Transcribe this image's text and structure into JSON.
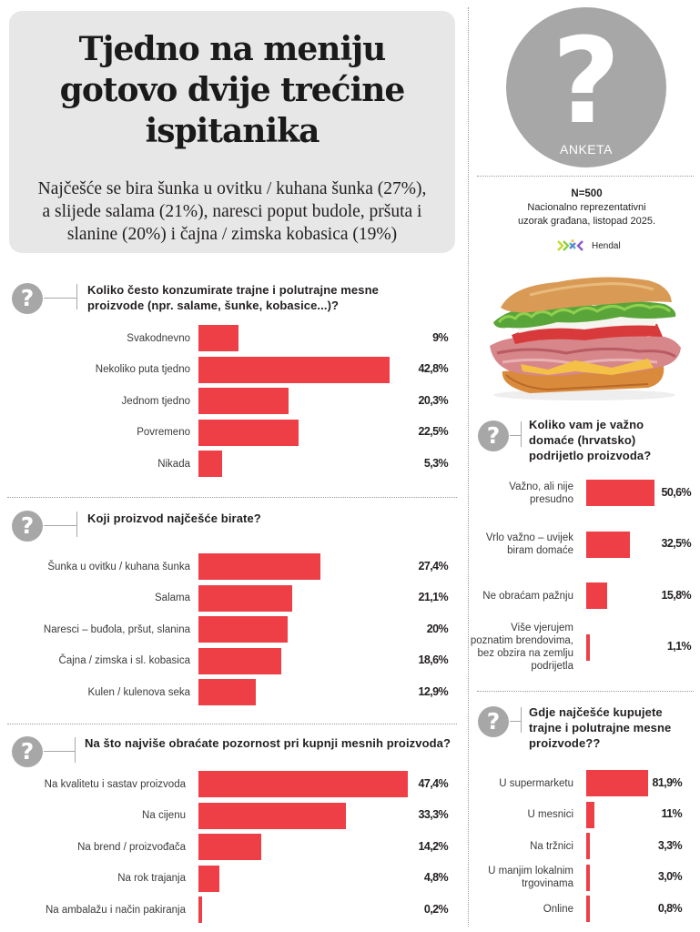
{
  "header": {
    "headline": [
      "Tjedno na meniju",
      "gotovo dvije trećine",
      "ispitanika"
    ],
    "subhead": [
      "Najčešće se bira šunka u ovitku / kuhana šunka (27%),",
      "a slijede salama (21%), naresci poput budole, pršuta i",
      "slanine (20%) i čajna / zimska kobasica (19%)"
    ]
  },
  "badge": {
    "icon": "question-mark-icon",
    "glyph": "?",
    "label": "ANKETA"
  },
  "sample": {
    "n": "N=500",
    "desc_lines": [
      "Nacionalno reprezentativni",
      "uzorak građana, listopad 2025."
    ],
    "source": "Hendal"
  },
  "colors": {
    "bar": "#ee3e46",
    "icon_gray": "#a7a7a8",
    "headline_bg": "#e6e7e6"
  },
  "chart_data": [
    {
      "type": "bar",
      "orientation": "horizontal",
      "title": "Koliko često konzumirate trajne i polutrajne mesne proizvode (npr. salame, šunke, kobasice...)?",
      "title_lines": [
        "Koliko često konzumirate trajne i polutrajne mesne",
        "proizvode (npr. salame, šunke, kobasice...)?"
      ],
      "categories": [
        "Svakodnevno",
        "Nekoliko puta tjedno",
        "Jednom tjedno",
        "Povremeno",
        "Nikada"
      ],
      "values": [
        9,
        42.8,
        20.3,
        22.5,
        5.3
      ],
      "value_labels": [
        "9%",
        "42,8%",
        "20,3%",
        "22,5%",
        "5,3%"
      ],
      "unit": "%"
    },
    {
      "type": "bar",
      "orientation": "horizontal",
      "title": "Koji proizvod najčešće birate?",
      "title_lines": [
        "Koji proizvod najčešće birate?"
      ],
      "categories": [
        "Šunka u ovitku / kuhana šunka",
        "Salama",
        "Naresci – buđola, pršut, slanina",
        "Čajna / zimska i sl. kobasica",
        "Kulen / kulenova seka"
      ],
      "values": [
        27.4,
        21.1,
        20,
        18.6,
        12.9
      ],
      "value_labels": [
        "27,4%",
        "21,1%",
        "20%",
        "18,6%",
        "12,9%"
      ],
      "unit": "%"
    },
    {
      "type": "bar",
      "orientation": "horizontal",
      "title": "Na što najviše obraćate pozornost pri kupnji mesnih proizvoda?",
      "title_lines": [
        "Na što najviše obraćate pozornost pri kupnji mesnih proizvoda?"
      ],
      "categories": [
        "Na kvalitetu i sastav proizvoda",
        "Na cijenu",
        "Na brend / proizvođača",
        "Na rok trajanja",
        "Na ambalažu i način pakiranja"
      ],
      "values": [
        47.4,
        33.3,
        14.2,
        4.8,
        0.2
      ],
      "value_labels": [
        "47,4%",
        "33,3%",
        "14,2%",
        "4,8%",
        "0,2%"
      ],
      "unit": "%"
    },
    {
      "type": "bar",
      "orientation": "horizontal",
      "title": "Koliko vam je važno domaće (hrvatsko) podrijetlo proizvoda?",
      "title_lines": [
        "Koliko vam je važno",
        "domaće (hrvatsko)",
        "podrijetlo proizvoda?"
      ],
      "categories": [
        "Važno, ali nije presudno",
        "Vrlo važno – uvijek biram domaće",
        "Ne obraćam pažnju",
        "Više vjerujem poznatim brendovima, bez obzira na zemlju podrijetla"
      ],
      "category_lines": [
        [
          "Važno, ali nije",
          "presudno"
        ],
        [
          "Vrlo važno – uvijek",
          "biram domaće"
        ],
        [
          "Ne obraćam pažnju"
        ],
        [
          "Više vjerujem",
          "poznatim brendovima,",
          "bez obzira na zemlju",
          "podrijetla"
        ]
      ],
      "values": [
        50.6,
        32.5,
        15.8,
        1.1
      ],
      "value_labels": [
        "50,6%",
        "32,5%",
        "15,8%",
        "1,1%"
      ],
      "unit": "%"
    },
    {
      "type": "bar",
      "orientation": "horizontal",
      "title": "Gdje najčešće kupujete trajne i polutrajne mesne proizvode??",
      "title_lines": [
        "Gdje najčešće kupujete",
        "trajne i polutrajne mesne",
        "proizvode??"
      ],
      "categories": [
        "U supermarketu",
        "U mesnici",
        "Na tržnici",
        "U manjim lokalnim trgovinama",
        "Online"
      ],
      "category_lines": [
        [
          "U supermarketu"
        ],
        [
          "U mesnici"
        ],
        [
          "Na tržnici"
        ],
        [
          "U manjim lokalnim",
          "trgovinama"
        ],
        [
          "Online"
        ]
      ],
      "values": [
        81.9,
        11,
        3.3,
        3.0,
        0.8
      ],
      "value_labels": [
        "81,9%",
        "11%",
        "3,3%",
        "3,0%",
        "0,8%"
      ],
      "unit": "%"
    }
  ]
}
